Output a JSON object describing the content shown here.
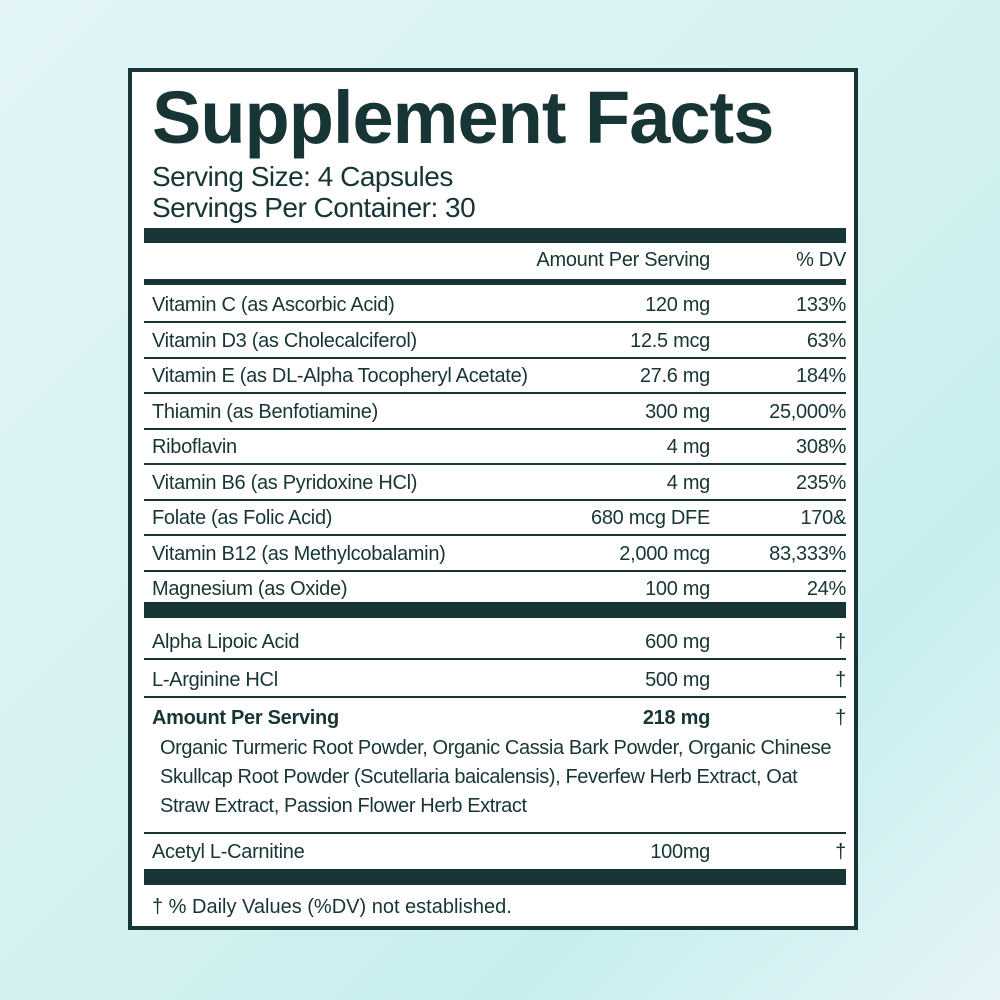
{
  "title": "Supplement Facts",
  "serving_size": "Serving Size: 4 Capsules",
  "servings_per_container": "Servings Per Container: 30",
  "header": {
    "amount": "Amount Per Serving",
    "dv": "% DV"
  },
  "vitamins": [
    {
      "name": "Vitamin C (as Ascorbic Acid)",
      "amount": "120 mg",
      "dv": "133%"
    },
    {
      "name": "Vitamin D3 (as Cholecalciferol)",
      "amount": "12.5 mcg",
      "dv": "63%"
    },
    {
      "name": "Vitamin E (as DL-Alpha Tocopheryl Acetate)",
      "amount": "27.6 mg",
      "dv": "184%"
    },
    {
      "name": "Thiamin (as Benfotiamine)",
      "amount": "300 mg",
      "dv": "25,000%"
    },
    {
      "name": "Riboflavin",
      "amount": "4 mg",
      "dv": "308%"
    },
    {
      "name": "Vitamin B6 (as Pyridoxine HCl)",
      "amount": "4 mg",
      "dv": "235%"
    },
    {
      "name": "Folate (as Folic Acid)",
      "amount": "680 mcg DFE",
      "dv": "170&"
    },
    {
      "name": "Vitamin B12 (as Methylcobalamin)",
      "amount": "2,000 mcg",
      "dv": "83,333%"
    },
    {
      "name": "Magnesium (as Oxide)",
      "amount": "100 mg",
      "dv": "24%"
    }
  ],
  "others": [
    {
      "name": "Alpha Lipoic Acid",
      "amount": "600 mg",
      "dv": "†"
    },
    {
      "name": "L-Arginine HCl",
      "amount": "500 mg",
      "dv": "†"
    }
  ],
  "blend": {
    "name": "Amount Per Serving",
    "amount": "218 mg",
    "dv": "†",
    "ingredients": "Organic Turmeric Root Powder, Organic Cassia Bark Powder, Organic Chinese Skullcap Root Powder (Scutellaria baicalensis), Feverfew Herb Extract, Oat Straw Extract, Passion Flower Herb Extract"
  },
  "last": {
    "name": "Acetyl L-Carnitine",
    "amount": "100mg",
    "dv": "†"
  },
  "footnote": "† % Daily Values (%DV) not established.",
  "colors": {
    "ink": "#173535",
    "panel": "#ffffff",
    "background": "#d3f0f0"
  }
}
